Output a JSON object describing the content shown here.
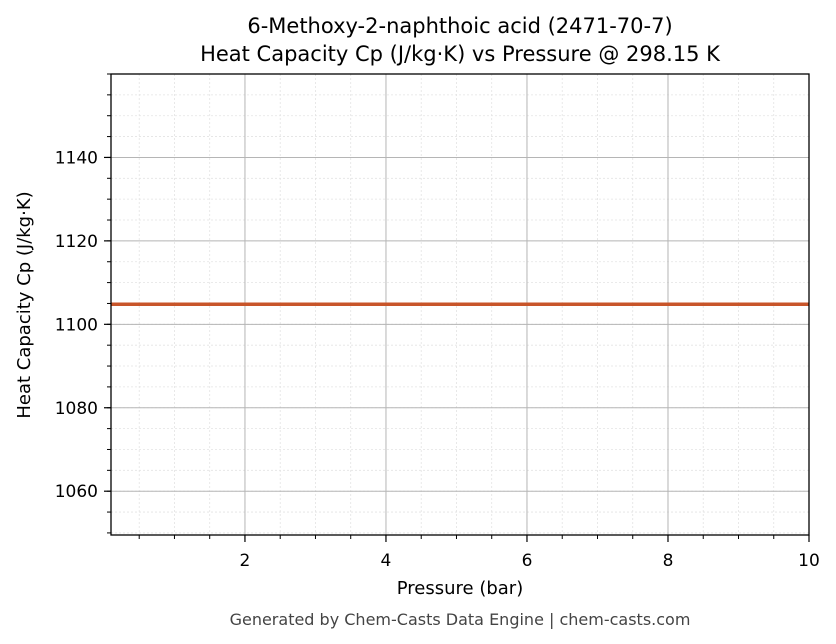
{
  "chart_data": {
    "type": "line",
    "title": "6-Methoxy-2-naphthoic acid (2471-70-7)",
    "subtitle": "Heat Capacity Cp (J/kg·K) vs Pressure @ 298.15 K",
    "xlabel": "Pressure (bar)",
    "ylabel": "Heat Capacity Cp (J/kg·K)",
    "xlim": [
      0.1,
      10
    ],
    "ylim": [
      1049.5,
      1160
    ],
    "xticks": [
      2,
      4,
      6,
      8,
      10
    ],
    "yticks": [
      1060,
      1080,
      1100,
      1120,
      1140
    ],
    "x_minor_step": 0.5,
    "y_minor_step": 5,
    "grid": true,
    "series": [
      {
        "x": [
          0.1,
          10
        ],
        "y": [
          1104.8,
          1104.8
        ],
        "color": "#c8552a"
      }
    ]
  },
  "footer": "Generated by Chem-Casts Data Engine | chem-casts.com"
}
